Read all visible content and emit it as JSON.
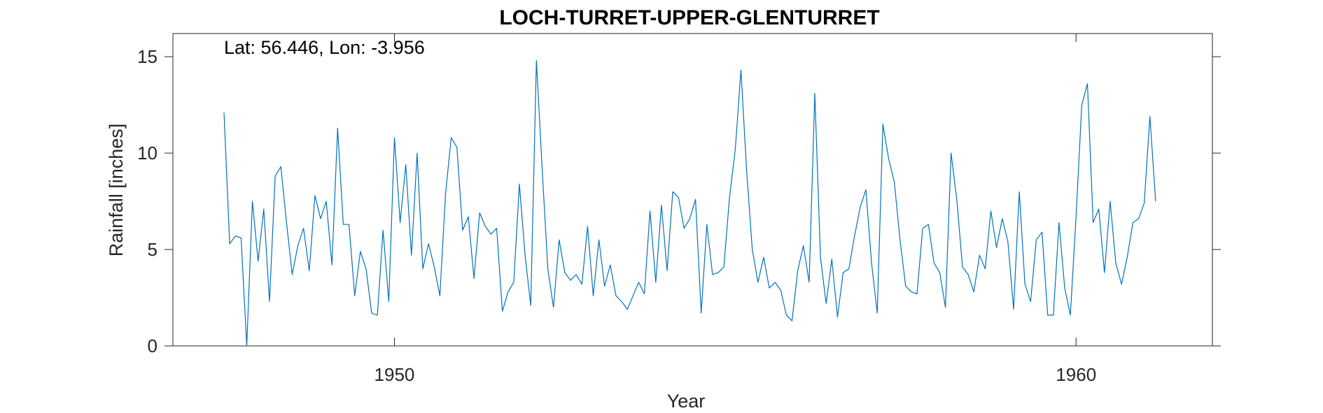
{
  "chart_data": {
    "type": "line",
    "title": "LOCH-TURRET-UPPER-GLENTURRET",
    "xlabel": "Year",
    "ylabel": "Rainfall [inches]",
    "annotation": "Lat: 56.446, Lon: -3.956",
    "xlim": [
      1946.75,
      1962.0
    ],
    "ylim": [
      0,
      16.2
    ],
    "xticks": [
      1950,
      1960
    ],
    "yticks": [
      0,
      5,
      10,
      15
    ],
    "grid": false,
    "line_color": "#0072BD",
    "series": [
      {
        "x_start": 1947.5,
        "x_step": 0.0833333,
        "values": [
          12.1,
          5.3,
          5.7,
          5.6,
          0.0,
          7.5,
          4.4,
          7.1,
          2.3,
          8.8,
          9.3,
          6.4,
          3.7,
          5.2,
          6.1,
          3.9,
          7.8,
          6.6,
          7.5,
          4.2,
          11.3,
          6.3,
          6.3,
          2.6,
          4.9,
          4.0,
          1.7,
          1.6,
          6.0,
          2.3,
          10.8,
          6.4,
          9.4,
          4.7,
          10.0,
          4.0,
          5.3,
          4.1,
          2.6,
          7.9,
          10.8,
          10.3,
          6.0,
          6.7,
          3.5,
          6.9,
          6.2,
          5.8,
          6.1,
          1.8,
          2.8,
          3.3,
          8.4,
          4.7,
          2.1,
          14.8,
          9.2,
          4.0,
          2.0,
          5.5,
          3.8,
          3.4,
          3.7,
          3.2,
          6.2,
          2.6,
          5.5,
          3.1,
          4.2,
          2.6,
          2.3,
          1.9,
          2.6,
          3.3,
          2.7,
          7.0,
          3.3,
          7.3,
          3.9,
          8.0,
          7.7,
          6.1,
          6.6,
          7.6,
          1.7,
          6.3,
          3.7,
          3.8,
          4.1,
          7.7,
          10.2,
          14.3,
          9.1,
          5.0,
          3.3,
          4.6,
          3.0,
          3.3,
          2.9,
          1.6,
          1.3,
          3.9,
          5.2,
          3.3,
          13.1,
          4.6,
          2.2,
          4.5,
          1.5,
          3.8,
          4.0,
          5.7,
          7.2,
          8.1,
          4.3,
          1.7,
          11.5,
          9.7,
          8.5,
          5.5,
          3.1,
          2.8,
          2.7,
          6.1,
          6.3,
          4.3,
          3.8,
          2.0,
          10.0,
          7.6,
          4.1,
          3.7,
          2.8,
          4.7,
          4.0,
          7.0,
          5.1,
          6.6,
          5.4,
          1.9,
          8.0,
          3.2,
          2.3,
          5.5,
          5.9,
          1.6,
          1.6,
          6.4,
          3.0,
          1.6,
          6.7,
          12.5,
          13.6,
          6.4,
          7.1,
          3.8,
          7.5,
          4.3,
          3.2,
          4.6,
          6.4,
          6.6,
          7.4,
          11.9,
          7.5
        ]
      }
    ]
  }
}
